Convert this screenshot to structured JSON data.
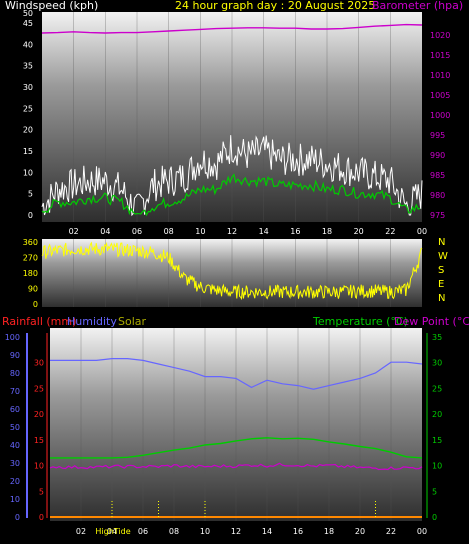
{
  "header": {
    "wind_label": "Windspeed (kph)",
    "title": "24 hour graph day : 20 August 2025",
    "baro_label": "Barometer (hpa)"
  },
  "bottom_header": {
    "rainfall_label": "Rainfall (mm)",
    "humidity_label": "Humidity",
    "solar_label": "Solar",
    "temperature_label": "Temperature (°C)",
    "dewpoint_label": "Dew Point (°C)"
  },
  "x_ticks": [
    "02",
    "04",
    "06",
    "08",
    "10",
    "12",
    "14",
    "16",
    "18",
    "20",
    "22",
    "00"
  ],
  "x_ticks_bottom": [
    "02",
    "04",
    "06",
    "08",
    "10",
    "12",
    "14",
    "16",
    "18",
    "20",
    "22",
    "00"
  ],
  "bottom_x_annotations": {
    "high_tide": "HighTide"
  },
  "compass": [
    "N",
    "W",
    "S",
    "E",
    "N"
  ],
  "colors": {
    "wind": "#ffffff",
    "wind_avg": "#00cc00",
    "baro": "#cc00cc",
    "direction": "#ffff00",
    "humidity": "#6666ff",
    "temperature": "#00cc00",
    "dewpoint": "#cc00cc",
    "rain": "#ff8800",
    "solar": "#ffff00"
  },
  "chart_data": [
    {
      "type": "line",
      "title": "24 hour graph day : 20 August 2025",
      "ylabel": "Windspeed (kph)",
      "y2label": "Barometer (hpa)",
      "ylim": [
        0,
        50
      ],
      "yticks": [
        0,
        5,
        10,
        15,
        20,
        25,
        30,
        35,
        40,
        45,
        50
      ],
      "y2lim": [
        970,
        1025
      ],
      "y2ticks": [
        975,
        980,
        985,
        990,
        995,
        1000,
        1005,
        1010,
        1015,
        1020
      ],
      "x": [
        0,
        1,
        2,
        3,
        4,
        5,
        6,
        7,
        8,
        9,
        10,
        11,
        12,
        13,
        14,
        15,
        16,
        17,
        18,
        19,
        20,
        21,
        22,
        23,
        24
      ],
      "series": [
        {
          "role": "wind_gust",
          "values": [
            2,
            6,
            7,
            8,
            8,
            6,
            1,
            7,
            8,
            9,
            13,
            12,
            16,
            14,
            15,
            13,
            13,
            13,
            12,
            11,
            10,
            9,
            8,
            2,
            5
          ]
        },
        {
          "role": "wind_avg",
          "values": [
            1,
            3,
            3,
            4,
            4,
            3,
            0,
            2,
            3,
            4,
            6,
            6,
            9,
            8,
            8,
            7,
            7,
            7,
            6,
            6,
            5,
            5,
            4,
            1,
            2
          ]
        },
        {
          "role": "barometer",
          "values": [
            1020.5,
            1020.6,
            1020.8,
            1020.6,
            1020.5,
            1020.6,
            1020.6,
            1020.8,
            1021.0,
            1021.2,
            1021.4,
            1021.6,
            1021.7,
            1021.8,
            1021.8,
            1021.7,
            1021.7,
            1021.5,
            1021.5,
            1021.6,
            1021.9,
            1022.2,
            1022.4,
            1022.6,
            1022.5
          ]
        }
      ]
    },
    {
      "type": "line",
      "ylim": [
        0,
        360
      ],
      "yticks": [
        0,
        45,
        90,
        135,
        180,
        225,
        270,
        315,
        360
      ],
      "x": [
        0,
        1,
        2,
        3,
        4,
        5,
        6,
        7,
        8,
        9,
        10,
        11,
        12,
        13,
        14,
        15,
        16,
        17,
        18,
        19,
        20,
        21,
        22,
        23,
        24
      ],
      "series": [
        {
          "role": "wind_direction",
          "values": [
            300,
            310,
            320,
            320,
            320,
            315,
            310,
            300,
            270,
            150,
            100,
            80,
            70,
            70,
            70,
            70,
            70,
            70,
            70,
            70,
            75,
            75,
            70,
            80,
            300
          ]
        }
      ]
    },
    {
      "type": "line",
      "ylabel": "Rainfall (mm)",
      "y2label": "Temperature (°C)",
      "ylim": [
        0,
        100
      ],
      "yticks": [
        0,
        10,
        20,
        30,
        40,
        50,
        60,
        70,
        80,
        90,
        100
      ],
      "rain_ticks": [
        0,
        5,
        10,
        15,
        20,
        25,
        30
      ],
      "y2lim": [
        0,
        35
      ],
      "y2ticks": [
        0,
        5,
        10,
        15,
        20,
        25,
        30,
        35
      ],
      "x": [
        0,
        1,
        2,
        3,
        4,
        5,
        6,
        7,
        8,
        9,
        10,
        11,
        12,
        13,
        14,
        15,
        16,
        17,
        18,
        19,
        20,
        21,
        22,
        23,
        24
      ],
      "series": [
        {
          "name": "Humidity",
          "values": [
            87,
            87,
            87,
            87,
            88,
            88,
            87,
            85,
            83,
            81,
            78,
            78,
            77,
            72,
            76,
            74,
            73,
            71,
            73,
            75,
            77,
            80,
            86,
            86,
            85
          ]
        },
        {
          "name": "Temperature (°C)",
          "values": [
            11.5,
            11.5,
            11.5,
            11.5,
            11.5,
            11.6,
            12,
            12.5,
            13,
            13.4,
            14,
            14.3,
            14.8,
            15.2,
            15.4,
            15.2,
            15.3,
            15.1,
            14.6,
            14.2,
            13.7,
            13.3,
            12.6,
            11.7,
            11.5
          ]
        },
        {
          "name": "Dew Point (°C)",
          "values": [
            9.8,
            9.7,
            9.7,
            9.7,
            9.8,
            9.8,
            9.8,
            9.8,
            10,
            9.8,
            9.8,
            9.9,
            9.9,
            10.1,
            10,
            10.2,
            10.1,
            9.9,
            10,
            9.8,
            9.6,
            9.5,
            9.5,
            9.6,
            9.6
          ]
        },
        {
          "name": "Rainfall (mm)",
          "values": [
            0,
            0,
            0,
            0,
            0,
            0,
            0,
            0,
            0,
            0,
            0,
            0,
            0,
            0,
            0,
            0,
            0,
            0,
            0,
            0,
            0,
            0,
            0,
            0,
            0
          ]
        },
        {
          "name": "Solar",
          "markers": [
            4,
            7,
            10,
            21
          ]
        }
      ]
    }
  ]
}
